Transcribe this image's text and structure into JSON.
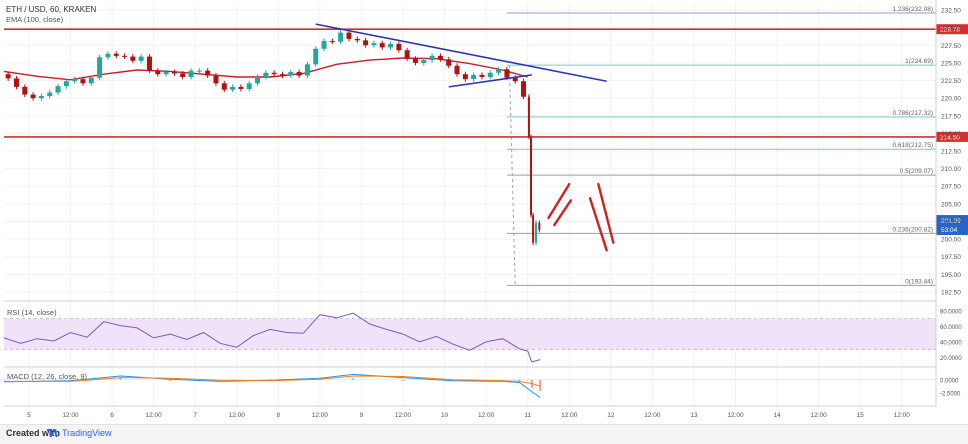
{
  "chart_data": {
    "type": "line",
    "header": "ETH / USD, 60, KRAKEN",
    "ema_label": "EMA (100, close)",
    "yticks": [
      "232.50",
      "230.00",
      "227.50",
      "225.00",
      "222.50",
      "220.00",
      "217.50",
      "215.00",
      "212.50",
      "210.00",
      "207.50",
      "205.00",
      "202.50",
      "200.00",
      "197.50",
      "195.00",
      "192.50"
    ],
    "ylim": [
      191.5,
      233.5
    ],
    "xlim": [
      0,
      112
    ],
    "xticks": [
      {
        "x": 3,
        "label": "5"
      },
      {
        "x": 8,
        "label": "12:00"
      },
      {
        "x": 13,
        "label": "6"
      },
      {
        "x": 18,
        "label": "12:00"
      },
      {
        "x": 23,
        "label": "7"
      },
      {
        "x": 28,
        "label": "12:00"
      },
      {
        "x": 33,
        "label": "8"
      },
      {
        "x": 38,
        "label": "12:00"
      },
      {
        "x": 43,
        "label": "9"
      },
      {
        "x": 48,
        "label": "12:00"
      },
      {
        "x": 53,
        "label": "10"
      },
      {
        "x": 58,
        "label": "12:00"
      },
      {
        "x": 63,
        "label": "11"
      },
      {
        "x": 68,
        "label": "12:00"
      },
      {
        "x": 73,
        "label": "12"
      },
      {
        "x": 78,
        "label": "12:00"
      },
      {
        "x": 83,
        "label": "13"
      },
      {
        "x": 88,
        "label": "12:00"
      },
      {
        "x": 93,
        "label": "14"
      },
      {
        "x": 98,
        "label": "12:00"
      },
      {
        "x": 103,
        "label": "15"
      },
      {
        "x": 108,
        "label": "12:00"
      }
    ],
    "price": [
      {
        "x": 0,
        "y": 223.4
      },
      {
        "x": 1,
        "y": 222.8
      },
      {
        "x": 2,
        "y": 221.6
      },
      {
        "x": 3,
        "y": 220.5
      },
      {
        "x": 4,
        "y": 220.0
      },
      {
        "x": 5,
        "y": 220.3
      },
      {
        "x": 6,
        "y": 220.8
      },
      {
        "x": 7,
        "y": 221.7
      },
      {
        "x": 8,
        "y": 222.4
      },
      {
        "x": 9,
        "y": 222.7
      },
      {
        "x": 10,
        "y": 222.1
      },
      {
        "x": 11,
        "y": 222.9
      },
      {
        "x": 12,
        "y": 225.8
      },
      {
        "x": 13,
        "y": 226.3
      },
      {
        "x": 14,
        "y": 226.0
      },
      {
        "x": 15,
        "y": 225.9
      },
      {
        "x": 16,
        "y": 225.3
      },
      {
        "x": 17,
        "y": 225.9
      },
      {
        "x": 18,
        "y": 223.9
      },
      {
        "x": 19,
        "y": 223.4
      },
      {
        "x": 20,
        "y": 223.7
      },
      {
        "x": 21,
        "y": 223.5
      },
      {
        "x": 22,
        "y": 223.0
      },
      {
        "x": 23,
        "y": 223.9
      },
      {
        "x": 24,
        "y": 223.9
      },
      {
        "x": 25,
        "y": 223.2
      },
      {
        "x": 26,
        "y": 222.1
      },
      {
        "x": 27,
        "y": 221.2
      },
      {
        "x": 28,
        "y": 221.6
      },
      {
        "x": 29,
        "y": 221.3
      },
      {
        "x": 30,
        "y": 222.1
      },
      {
        "x": 31,
        "y": 223.0
      },
      {
        "x": 32,
        "y": 223.6
      },
      {
        "x": 33,
        "y": 223.4
      },
      {
        "x": 34,
        "y": 223.2
      },
      {
        "x": 35,
        "y": 223.7
      },
      {
        "x": 36,
        "y": 223.2
      },
      {
        "x": 37,
        "y": 224.8
      },
      {
        "x": 38,
        "y": 227.0
      },
      {
        "x": 39,
        "y": 228.1
      },
      {
        "x": 40,
        "y": 228.0
      },
      {
        "x": 41,
        "y": 229.3
      },
      {
        "x": 42,
        "y": 228.4
      },
      {
        "x": 43,
        "y": 228.2
      },
      {
        "x": 44,
        "y": 227.5
      },
      {
        "x": 45,
        "y": 227.8
      },
      {
        "x": 46,
        "y": 227.2
      },
      {
        "x": 47,
        "y": 227.7
      },
      {
        "x": 48,
        "y": 226.8
      },
      {
        "x": 49,
        "y": 225.6
      },
      {
        "x": 50,
        "y": 225.0
      },
      {
        "x": 51,
        "y": 225.4
      },
      {
        "x": 52,
        "y": 226.0
      },
      {
        "x": 53,
        "y": 225.5
      },
      {
        "x": 54,
        "y": 224.6
      },
      {
        "x": 55,
        "y": 223.4
      },
      {
        "x": 56,
        "y": 222.7
      },
      {
        "x": 57,
        "y": 223.3
      },
      {
        "x": 58,
        "y": 223.0
      },
      {
        "x": 59,
        "y": 223.6
      },
      {
        "x": 60,
        "y": 224.1
      },
      {
        "x": 61,
        "y": 222.9
      },
      {
        "x": 62,
        "y": 222.4
      },
      {
        "x": 63,
        "y": 220.2
      },
      {
        "x": 63.3,
        "y": 214.5
      },
      {
        "x": 63.5,
        "y": 203.4
      },
      {
        "x": 63.8,
        "y": 199.5
      },
      {
        "x": 64.2,
        "y": 202.3
      },
      {
        "x": 64.6,
        "y": 201.3
      }
    ],
    "ema": [
      {
        "x": 0,
        "y": 223.8
      },
      {
        "x": 4,
        "y": 223.1
      },
      {
        "x": 8,
        "y": 222.6
      },
      {
        "x": 12,
        "y": 223.4
      },
      {
        "x": 16,
        "y": 224.0
      },
      {
        "x": 20,
        "y": 223.8
      },
      {
        "x": 24,
        "y": 223.4
      },
      {
        "x": 28,
        "y": 223.0
      },
      {
        "x": 32,
        "y": 223.0
      },
      {
        "x": 36,
        "y": 223.5
      },
      {
        "x": 40,
        "y": 224.8
      },
      {
        "x": 44,
        "y": 225.4
      },
      {
        "x": 48,
        "y": 225.7
      },
      {
        "x": 52,
        "y": 225.6
      },
      {
        "x": 56,
        "y": 224.9
      },
      {
        "x": 60,
        "y": 224.0
      },
      {
        "x": 63,
        "y": 223.0
      }
    ],
    "horizontal_levels": [
      {
        "label": "229.78",
        "y": 229.78
      },
      {
        "label": "214.50",
        "y": 214.5
      }
    ],
    "fib_levels": [
      {
        "ratio": "1.236",
        "value": "232.08",
        "y": 232.08
      },
      {
        "ratio": "1",
        "value": "224.69",
        "y": 224.69
      },
      {
        "ratio": "0.786",
        "value": "217.32",
        "y": 217.32
      },
      {
        "ratio": "0.618",
        "value": "212.75",
        "y": 212.75
      },
      {
        "ratio": "0.5",
        "value": "209.07",
        "y": 209.07
      },
      {
        "ratio": "0.236",
        "value": "200.82",
        "y": 200.82
      },
      {
        "ratio": "0",
        "value": "193.44",
        "y": 193.44
      }
    ],
    "current_price_labels": [
      "201.99",
      "53:04"
    ],
    "trendlines": [
      {
        "x1": 37.5,
        "y1": 230.5,
        "x2": 72.5,
        "y2": 222.4
      },
      {
        "x1": 53.5,
        "y1": 221.6,
        "x2": 63.5,
        "y2": 223.3
      }
    ],
    "projection_arrows": [
      {
        "x1": 65.5,
        "y1": 203.0,
        "x2": 68.0,
        "y2": 207.8
      },
      {
        "x1": 66.2,
        "y1": 202.0,
        "x2": 68.2,
        "y2": 205.5
      },
      {
        "x1": 70.5,
        "y1": 205.8,
        "x2": 72.5,
        "y2": 198.4
      },
      {
        "x1": 71.5,
        "y1": 207.8,
        "x2": 73.3,
        "y2": 199.5
      }
    ],
    "rsi": {
      "label": "RSI (14, close)",
      "ticks": [
        "80.0000",
        "60.0000",
        "40.0000",
        "20.0000"
      ],
      "ylim": [
        10,
        85
      ],
      "band": [
        30,
        70
      ],
      "points": [
        {
          "x": 0,
          "y": 45
        },
        {
          "x": 2,
          "y": 38
        },
        {
          "x": 4,
          "y": 44
        },
        {
          "x": 6,
          "y": 41
        },
        {
          "x": 8,
          "y": 52
        },
        {
          "x": 10,
          "y": 46
        },
        {
          "x": 12,
          "y": 66
        },
        {
          "x": 14,
          "y": 61
        },
        {
          "x": 16,
          "y": 58
        },
        {
          "x": 18,
          "y": 45
        },
        {
          "x": 20,
          "y": 50
        },
        {
          "x": 22,
          "y": 43
        },
        {
          "x": 24,
          "y": 52
        },
        {
          "x": 26,
          "y": 38
        },
        {
          "x": 28,
          "y": 33
        },
        {
          "x": 30,
          "y": 48
        },
        {
          "x": 32,
          "y": 56
        },
        {
          "x": 34,
          "y": 52
        },
        {
          "x": 36,
          "y": 51
        },
        {
          "x": 38,
          "y": 75
        },
        {
          "x": 40,
          "y": 71
        },
        {
          "x": 42,
          "y": 77
        },
        {
          "x": 44,
          "y": 63
        },
        {
          "x": 46,
          "y": 56
        },
        {
          "x": 48,
          "y": 50
        },
        {
          "x": 50,
          "y": 40
        },
        {
          "x": 52,
          "y": 47
        },
        {
          "x": 54,
          "y": 37
        },
        {
          "x": 56,
          "y": 29
        },
        {
          "x": 58,
          "y": 40
        },
        {
          "x": 60,
          "y": 44
        },
        {
          "x": 62,
          "y": 31
        },
        {
          "x": 63,
          "y": 28
        },
        {
          "x": 63.5,
          "y": 14
        },
        {
          "x": 64.5,
          "y": 17
        }
      ]
    },
    "macd": {
      "label": "MACD (12, 26, close, 9)",
      "ticks": [
        "0.0000",
        "-2.5000"
      ],
      "ylim": [
        -4.5,
        2.0
      ],
      "macd_line": [
        {
          "x": 0,
          "y": -0.4
        },
        {
          "x": 8,
          "y": -0.2
        },
        {
          "x": 14,
          "y": 0.7
        },
        {
          "x": 20,
          "y": 0.1
        },
        {
          "x": 26,
          "y": -0.3
        },
        {
          "x": 32,
          "y": -0.1
        },
        {
          "x": 38,
          "y": 0.3
        },
        {
          "x": 42,
          "y": 1.0
        },
        {
          "x": 48,
          "y": 0.4
        },
        {
          "x": 54,
          "y": -0.2
        },
        {
          "x": 60,
          "y": -0.3
        },
        {
          "x": 62,
          "y": -0.5
        },
        {
          "x": 63.5,
          "y": -2.2
        },
        {
          "x": 64.5,
          "y": -3.3
        }
      ],
      "signal_line": [
        {
          "x": 0,
          "y": -0.3
        },
        {
          "x": 8,
          "y": -0.3
        },
        {
          "x": 14,
          "y": 0.4
        },
        {
          "x": 20,
          "y": 0.3
        },
        {
          "x": 26,
          "y": -0.1
        },
        {
          "x": 32,
          "y": -0.2
        },
        {
          "x": 38,
          "y": 0.1
        },
        {
          "x": 42,
          "y": 0.7
        },
        {
          "x": 48,
          "y": 0.6
        },
        {
          "x": 54,
          "y": 0.0
        },
        {
          "x": 60,
          "y": -0.2
        },
        {
          "x": 62,
          "y": -0.3
        },
        {
          "x": 63.5,
          "y": -0.7
        },
        {
          "x": 64.5,
          "y": -1.2
        }
      ]
    },
    "colors": {
      "up": "#26a69a",
      "down": "#b01212",
      "ema": "#c91d2a",
      "trend": "#2c35b5",
      "level": "#d32f2f",
      "fib": "#9e9e9e",
      "rsi": "#7e57c2",
      "rsi_band": "#f0e2f8",
      "macd": "#2196f3",
      "signal": "#f57f17",
      "axis_text": "#555555"
    }
  },
  "footer": {
    "made_with": "Created with",
    "brand": "TradingView"
  }
}
